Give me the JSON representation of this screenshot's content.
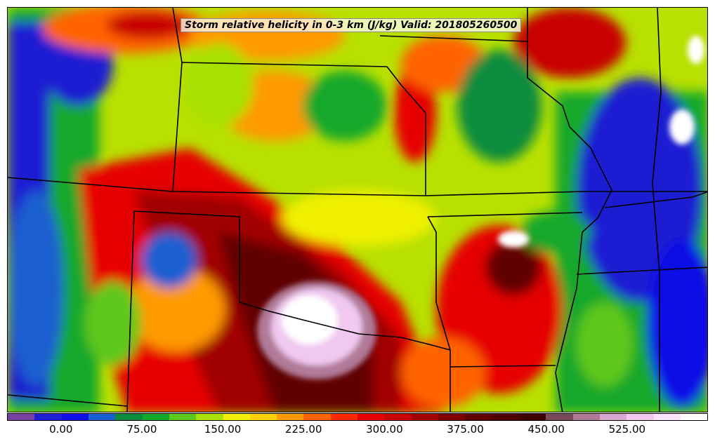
{
  "title": "Storm relative helicity in 0-3 km (J/kg) Valid: 201805260500",
  "colorbar": {
    "colors": [
      "#7b3fa0",
      "#1e1ed2",
      "#1010e6",
      "#1a5fd0",
      "#0a8c3c",
      "#14a82a",
      "#5fc81e",
      "#a8e000",
      "#f0f000",
      "#ffd000",
      "#ff9a00",
      "#ff6400",
      "#ff2a00",
      "#e60000",
      "#c80000",
      "#a00000",
      "#800000",
      "#600000",
      "#500000",
      "#400000",
      "#7a4a5a",
      "#b07a98",
      "#d8a8d0",
      "#f0c8f0",
      "#fde4fd",
      "#ffffff"
    ],
    "tick_labels": [
      "0.00",
      "75.00",
      "150.00",
      "225.00",
      "300.00",
      "375.00",
      "450.00",
      "525.00"
    ]
  }
}
